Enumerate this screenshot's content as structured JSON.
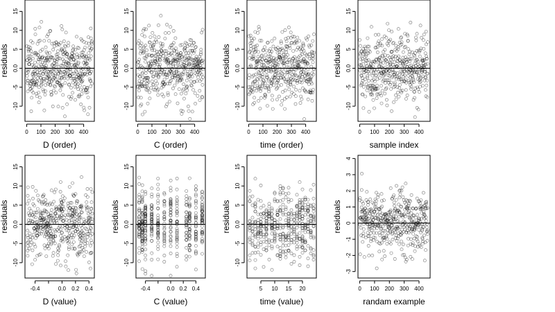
{
  "chart_data": [
    {
      "type": "scatter",
      "xlabel": "D (order)",
      "ylabel": "residuals",
      "xlim": [
        -12,
        475
      ],
      "ylim": [
        -14,
        18
      ],
      "xticks": [
        0,
        100,
        200,
        300,
        400
      ],
      "xtick_labels": [
        "0",
        "100",
        "200",
        "300",
        "400"
      ],
      "yticks": [
        -10,
        -5,
        0,
        5,
        10,
        15
      ],
      "ytick_labels": [
        "-10",
        "-5",
        "0.0",
        "5",
        "10",
        "15"
      ],
      "hline": 0,
      "n_points": 460,
      "spread": 4.5,
      "x_kind": "index",
      "seed": 11
    },
    {
      "type": "scatter",
      "xlabel": "C (order)",
      "ylabel": "residuals",
      "xlim": [
        -12,
        475
      ],
      "ylim": [
        -14,
        18
      ],
      "xticks": [
        0,
        100,
        200,
        300,
        400
      ],
      "xtick_labels": [
        "0",
        "100",
        "200",
        "300",
        "400"
      ],
      "yticks": [
        -10,
        -5,
        0,
        5,
        10,
        15
      ],
      "ytick_labels": [
        "-10",
        "-5",
        "0.0",
        "5",
        "10",
        "15"
      ],
      "hline": 0,
      "n_points": 460,
      "spread": 4.5,
      "x_kind": "index",
      "seed": 23
    },
    {
      "type": "scatter",
      "xlabel": "time (order)",
      "ylabel": "residuals",
      "xlim": [
        -12,
        475
      ],
      "ylim": [
        -14,
        18
      ],
      "xticks": [
        0,
        100,
        200,
        300,
        400
      ],
      "xtick_labels": [
        "0",
        "100",
        "200",
        "300",
        "400"
      ],
      "yticks": [
        -10,
        -5,
        0,
        5,
        10,
        15
      ],
      "ytick_labels": [
        "-10",
        "-5",
        "0.0",
        "5",
        "10",
        "15"
      ],
      "hline": 0,
      "n_points": 460,
      "spread": 4.5,
      "x_kind": "index",
      "seed": 37
    },
    {
      "type": "scatter",
      "xlabel": "sample index",
      "ylabel": "residuals",
      "xlim": [
        -12,
        475
      ],
      "ylim": [
        -14,
        18
      ],
      "xticks": [
        0,
        100,
        200,
        300,
        400
      ],
      "xtick_labels": [
        "0",
        "100",
        "200",
        "300",
        "400"
      ],
      "yticks": [
        -10,
        -5,
        0,
        5,
        10,
        15
      ],
      "ytick_labels": [
        "-10",
        "-5",
        "0.0",
        "5",
        "10",
        "15"
      ],
      "hline": 0,
      "n_points": 460,
      "spread": 4.5,
      "x_kind": "index",
      "seed": 41
    },
    {
      "type": "scatter",
      "xlabel": "D (value)",
      "ylabel": "residuals",
      "xlim": [
        -0.55,
        0.48
      ],
      "ylim": [
        -14,
        18
      ],
      "xticks": [
        -0.4,
        -0.2,
        0.0,
        0.2,
        0.4
      ],
      "xtick_labels": [
        "-0.4",
        "",
        "0.0",
        "0.2",
        "0.4"
      ],
      "yticks": [
        -10,
        -5,
        0,
        5,
        10,
        15
      ],
      "ytick_labels": [
        "-10",
        "-5",
        "0.0",
        "5",
        "10",
        "15"
      ],
      "hline": 0,
      "n_points": 460,
      "spread": 4.5,
      "x_kind": "range",
      "x_range": [
        -0.52,
        0.45
      ],
      "seed": 53
    },
    {
      "type": "scatter",
      "xlabel": "C (value)",
      "ylabel": "residuals",
      "xlim": [
        -0.55,
        0.55
      ],
      "ylim": [
        -14,
        18
      ],
      "xticks": [
        -0.4,
        -0.2,
        0.0,
        0.2,
        0.4
      ],
      "xtick_labels": [
        "-0.4",
        "",
        "0.0",
        "0.2",
        "0.4"
      ],
      "yticks": [
        -10,
        -5,
        0,
        5,
        10,
        15
      ],
      "ytick_labels": [
        "-10",
        "-5",
        "0.0",
        "5",
        "10",
        "15"
      ],
      "hline": 0,
      "n_points": 460,
      "spread": 4.5,
      "x_kind": "levels",
      "x_levels": [
        -0.5,
        -0.45,
        -0.4,
        -0.3,
        -0.2,
        -0.1,
        0.0,
        0.1,
        0.25,
        0.3,
        0.4,
        0.5
      ],
      "seed": 67
    },
    {
      "type": "scatter",
      "xlabel": "time (value)",
      "ylabel": "residuals",
      "xlim": [
        0,
        25
      ],
      "ylim": [
        -14,
        18
      ],
      "xticks": [
        5,
        10,
        15,
        20
      ],
      "xtick_labels": [
        "5",
        "10",
        "15",
        "20"
      ],
      "yticks": [
        -10,
        -5,
        0,
        5,
        10,
        15
      ],
      "ytick_labels": [
        "-10",
        "-5",
        "0.0",
        "5",
        "10",
        "15"
      ],
      "hline": 0,
      "n_points": 460,
      "spread": 4.5,
      "x_kind": "levels",
      "x_levels": [
        1,
        2,
        3,
        4,
        5,
        6,
        7,
        8,
        9,
        10,
        11,
        12,
        13,
        14,
        15,
        16,
        17,
        18,
        19,
        20,
        21,
        22,
        23,
        24
      ],
      "seed": 79
    },
    {
      "type": "scatter",
      "xlabel": "randam example",
      "ylabel": "residuals",
      "xlim": [
        -12,
        475
      ],
      "ylim": [
        -3.4,
        4.2
      ],
      "xticks": [
        0,
        100,
        200,
        300,
        400
      ],
      "xtick_labels": [
        "0",
        "100",
        "200",
        "300",
        "400"
      ],
      "yticks": [
        -3,
        -2,
        -1,
        0,
        1,
        2,
        3,
        4
      ],
      "ytick_labels": [
        "-3",
        "-2",
        "-1",
        "0",
        "1",
        "2",
        "3",
        "4"
      ],
      "hline": 0,
      "n_points": 460,
      "spread": 1.0,
      "x_kind": "index",
      "seed": 97
    }
  ]
}
